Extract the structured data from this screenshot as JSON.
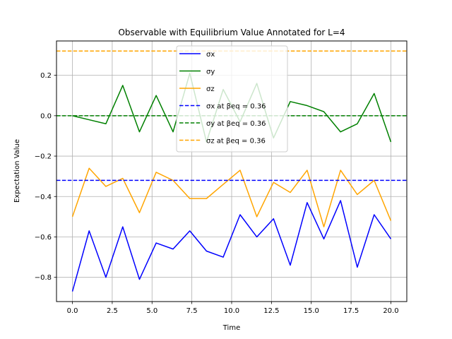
{
  "chart_data": {
    "type": "line",
    "title": "Observable with Equilibrium Value Annotated for L=4",
    "xlabel": "Time",
    "ylabel": "Expectation Value",
    "xlim": [
      -1.0,
      21.0
    ],
    "ylim": [
      -0.92,
      0.37
    ],
    "xticks": [
      0.0,
      2.5,
      5.0,
      7.5,
      10.0,
      12.5,
      15.0,
      17.5,
      20.0
    ],
    "xtick_labels": [
      "0.0",
      "2.5",
      "5.0",
      "7.5",
      "10.0",
      "12.5",
      "15.0",
      "17.5",
      "20.0"
    ],
    "yticks": [
      -0.8,
      -0.6,
      -0.4,
      -0.2,
      0.0,
      0.2
    ],
    "ytick_labels": [
      "−0.8",
      "−0.6",
      "−0.4",
      "−0.2",
      "0.0",
      "0.2"
    ],
    "grid": true,
    "legend_position": "upper center",
    "x": [
      0.0,
      1.05,
      2.1,
      3.16,
      4.21,
      5.26,
      6.32,
      7.37,
      8.42,
      9.47,
      10.53,
      11.58,
      12.63,
      13.68,
      14.74,
      15.79,
      16.84,
      17.89,
      18.95,
      20.0
    ],
    "series": [
      {
        "name": "σx",
        "color": "#0000ff",
        "style": "solid",
        "values": [
          -0.87,
          -0.57,
          -0.8,
          -0.55,
          -0.81,
          -0.63,
          -0.66,
          -0.57,
          -0.67,
          -0.7,
          -0.49,
          -0.6,
          -0.51,
          -0.74,
          -0.43,
          -0.61,
          -0.42,
          -0.75,
          -0.49,
          -0.61
        ]
      },
      {
        "name": "σy",
        "color": "#008000",
        "style": "solid",
        "values": [
          0.0,
          -0.02,
          -0.04,
          0.15,
          -0.08,
          0.1,
          -0.08,
          0.21,
          -0.13,
          0.13,
          -0.03,
          0.16,
          -0.11,
          0.07,
          0.05,
          0.02,
          -0.08,
          -0.04,
          0.11,
          -0.13
        ]
      },
      {
        "name": "σz",
        "color": "#ffa500",
        "style": "solid",
        "values": [
          -0.5,
          -0.26,
          -0.35,
          -0.31,
          -0.48,
          -0.28,
          -0.32,
          -0.41,
          -0.41,
          -0.34,
          -0.27,
          -0.5,
          -0.33,
          -0.38,
          -0.27,
          -0.55,
          -0.27,
          -0.39,
          -0.32,
          -0.52
        ]
      },
      {
        "name": "σx at βeq = 0.36",
        "color": "#0000ff",
        "style": "dashed",
        "constant": -0.32
      },
      {
        "name": "σy at βeq = 0.36",
        "color": "#008000",
        "style": "dashed",
        "constant": 0.0
      },
      {
        "name": "σz at βeq = 0.36",
        "color": "#ffa500",
        "style": "dashed",
        "constant": 0.32
      }
    ]
  }
}
